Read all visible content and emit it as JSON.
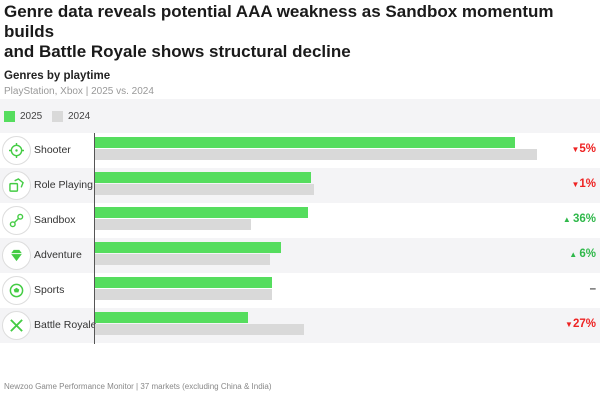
{
  "title_line1": "Genre data reveals potential AAA weakness as Sandbox momentum builds",
  "title_line2": "and Battle Royale shows structural decline",
  "subtitle": "Genres by playtime",
  "subtitle2": "PlayStation, Xbox | 2025 vs. 2024",
  "footer": "Newzoo Game Performance Monitor | 37 markets (excluding China & India)",
  "chart_data": {
    "type": "bar",
    "orientation": "horizontal",
    "grid": false,
    "legend_placement": "top-left",
    "categories": [
      "Shooter",
      "Role Playing",
      "Sandbox",
      "Adventure",
      "Sports",
      "Battle Royale"
    ],
    "series": [
      {
        "name": "2025",
        "color": "#55dd5e",
        "values": [
          95,
          48.9,
          48.2,
          42.1,
          40,
          34.6
        ]
      },
      {
        "name": "2024",
        "color": "#d9d9d9",
        "values": [
          100,
          49.5,
          35.3,
          39.6,
          40,
          47.3
        ]
      }
    ],
    "changes": [
      "5%",
      "1%",
      "36%",
      "6%",
      "–",
      "27%"
    ],
    "change_dir": [
      "down",
      "down",
      "up",
      "up",
      "flat",
      "down"
    ],
    "icons": [
      "crosshair-icon",
      "dice-icon",
      "sandbox-icon",
      "gem-icon",
      "soccer-ball-icon",
      "crossed-swords-icon"
    ],
    "colors": {
      "up": "#2fb84a",
      "down": "#ee2222",
      "flat": "#555555"
    }
  }
}
